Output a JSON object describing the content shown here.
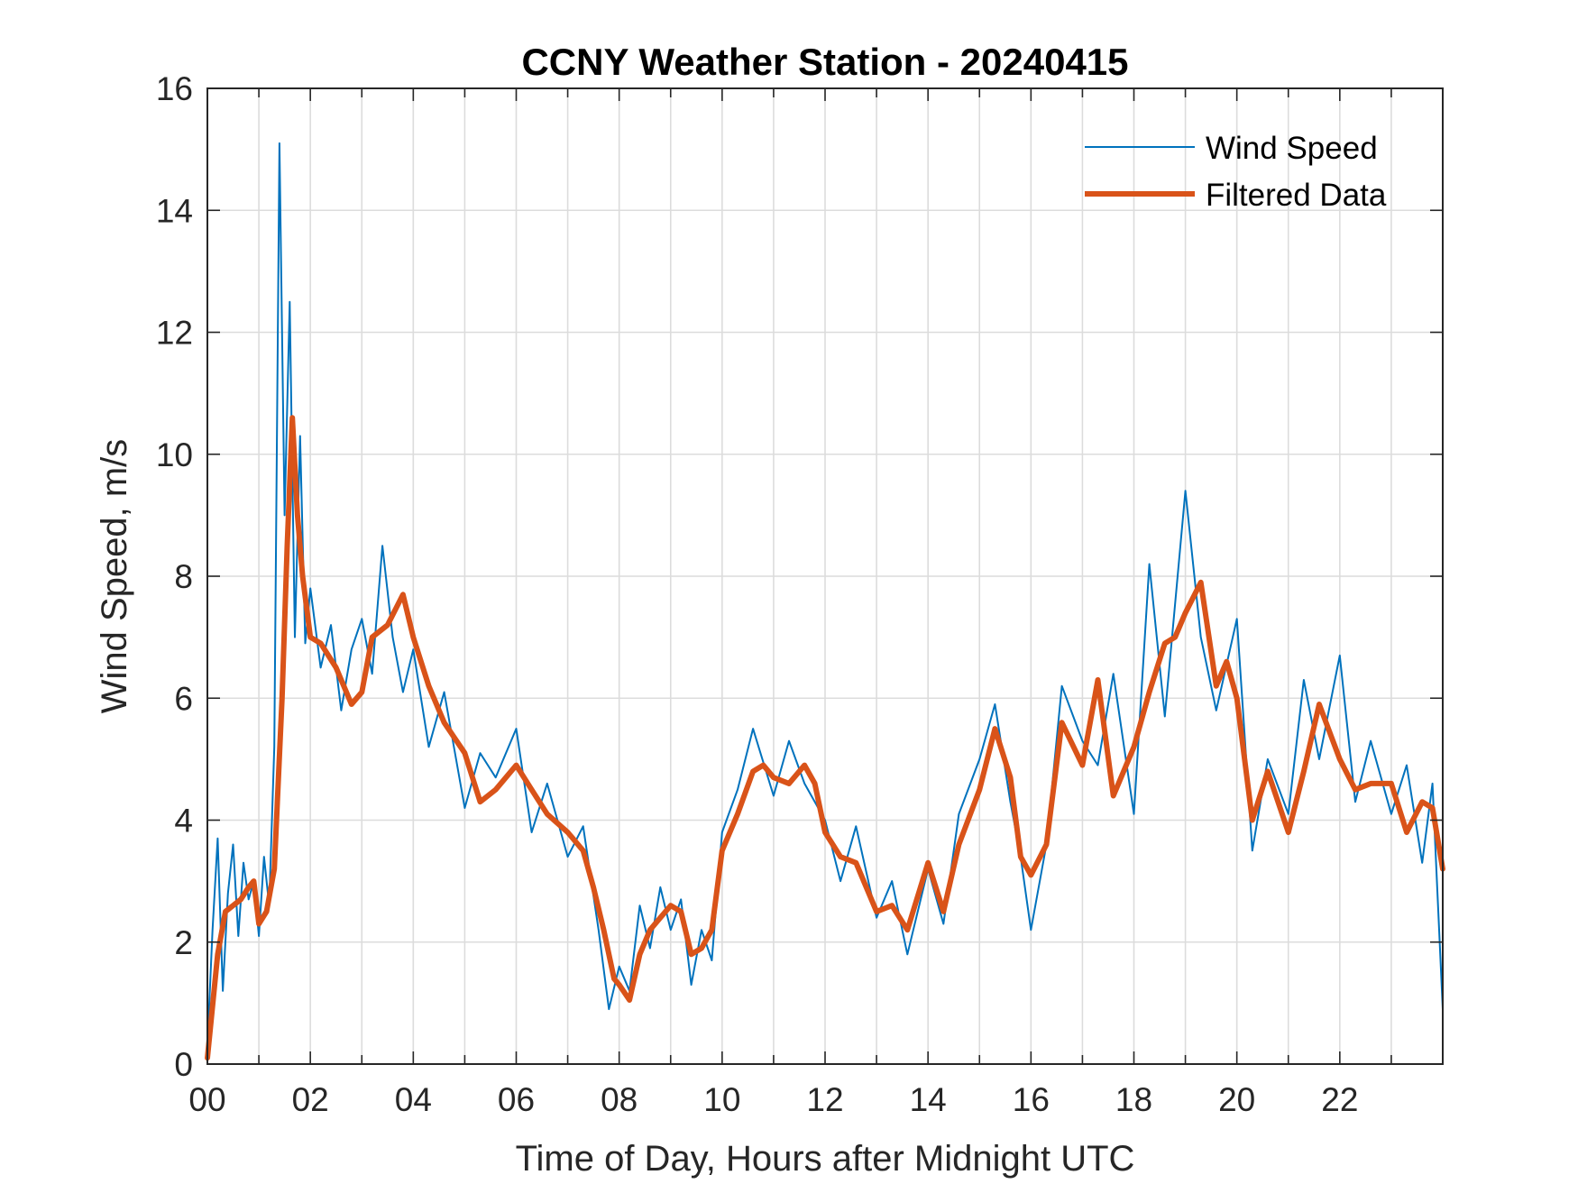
{
  "chart_data": {
    "type": "line",
    "title": "CCNY Weather Station - 20240415",
    "xlabel": "Time of Day, Hours after Midnight UTC",
    "ylabel": "Wind Speed, m/s",
    "xlim": [
      0,
      24
    ],
    "ylim": [
      0,
      16
    ],
    "xticks": [
      0,
      2,
      4,
      6,
      8,
      10,
      12,
      14,
      16,
      18,
      20,
      22
    ],
    "xtick_labels": [
      "00",
      "02",
      "04",
      "06",
      "08",
      "10",
      "12",
      "14",
      "16",
      "18",
      "20",
      "22"
    ],
    "yticks": [
      0,
      2,
      4,
      6,
      8,
      10,
      12,
      14,
      16
    ],
    "ytick_labels": [
      "0",
      "2",
      "4",
      "6",
      "8",
      "10",
      "12",
      "14",
      "16"
    ],
    "grid": true,
    "minor_x_grid_step": 1,
    "legend_position": "top-right",
    "colors": {
      "raw": "#0072BD",
      "filtered": "#D95319",
      "grid": "#dcdcdc",
      "axis": "#262626"
    },
    "series": [
      {
        "name": "Wind Speed",
        "style": "thin",
        "x": [
          0.0,
          0.1,
          0.2,
          0.3,
          0.4,
          0.5,
          0.6,
          0.7,
          0.8,
          0.9,
          1.0,
          1.1,
          1.2,
          1.3,
          1.4,
          1.5,
          1.6,
          1.7,
          1.8,
          1.9,
          2.0,
          2.2,
          2.4,
          2.6,
          2.8,
          3.0,
          3.2,
          3.4,
          3.6,
          3.8,
          4.0,
          4.3,
          4.6,
          5.0,
          5.3,
          5.6,
          6.0,
          6.3,
          6.6,
          7.0,
          7.3,
          7.6,
          7.8,
          8.0,
          8.2,
          8.4,
          8.6,
          8.8,
          9.0,
          9.2,
          9.4,
          9.6,
          9.8,
          10.0,
          10.3,
          10.6,
          11.0,
          11.3,
          11.6,
          12.0,
          12.3,
          12.6,
          13.0,
          13.3,
          13.6,
          14.0,
          14.3,
          14.6,
          15.0,
          15.3,
          15.6,
          15.8,
          16.0,
          16.3,
          16.6,
          17.0,
          17.3,
          17.6,
          18.0,
          18.3,
          18.6,
          19.0,
          19.3,
          19.6,
          20.0,
          20.3,
          20.6,
          21.0,
          21.3,
          21.6,
          22.0,
          22.3,
          22.6,
          23.0,
          23.3,
          23.6,
          23.8,
          24.0
        ],
        "values": [
          0.3,
          2.2,
          3.7,
          1.2,
          2.8,
          3.6,
          2.1,
          3.3,
          2.7,
          3.0,
          2.1,
          3.4,
          2.6,
          5.2,
          15.1,
          9.0,
          12.5,
          7.0,
          10.3,
          6.9,
          7.8,
          6.5,
          7.2,
          5.8,
          6.8,
          7.3,
          6.4,
          8.5,
          7.0,
          6.1,
          6.8,
          5.2,
          6.1,
          4.2,
          5.1,
          4.7,
          5.5,
          3.8,
          4.6,
          3.4,
          3.9,
          2.2,
          0.9,
          1.6,
          1.2,
          2.6,
          1.9,
          2.9,
          2.2,
          2.7,
          1.3,
          2.2,
          1.7,
          3.8,
          4.5,
          5.5,
          4.4,
          5.3,
          4.6,
          4.0,
          3.0,
          3.9,
          2.4,
          3.0,
          1.8,
          3.2,
          2.3,
          4.1,
          5.0,
          5.9,
          4.3,
          3.4,
          2.2,
          3.6,
          6.2,
          5.3,
          4.9,
          6.4,
          4.1,
          8.2,
          5.7,
          9.4,
          7.0,
          5.8,
          7.3,
          3.5,
          5.0,
          4.1,
          6.3,
          5.0,
          6.7,
          4.3,
          5.3,
          4.1,
          4.9,
          3.3,
          4.6,
          0.9
        ]
      },
      {
        "name": "Filtered Data",
        "style": "thick",
        "x": [
          0.0,
          0.2,
          0.35,
          0.5,
          0.65,
          0.8,
          0.9,
          1.0,
          1.15,
          1.3,
          1.45,
          1.55,
          1.65,
          1.75,
          1.85,
          2.0,
          2.2,
          2.5,
          2.8,
          3.0,
          3.2,
          3.5,
          3.8,
          4.0,
          4.3,
          4.6,
          5.0,
          5.3,
          5.6,
          6.0,
          6.3,
          6.6,
          7.0,
          7.3,
          7.5,
          7.7,
          7.9,
          8.0,
          8.2,
          8.4,
          8.6,
          8.8,
          9.0,
          9.2,
          9.4,
          9.6,
          9.8,
          10.0,
          10.3,
          10.6,
          10.8,
          11.0,
          11.3,
          11.6,
          11.8,
          12.0,
          12.3,
          12.6,
          13.0,
          13.3,
          13.6,
          14.0,
          14.3,
          14.6,
          15.0,
          15.3,
          15.6,
          15.8,
          16.0,
          16.3,
          16.6,
          17.0,
          17.3,
          17.6,
          18.0,
          18.3,
          18.6,
          18.8,
          19.0,
          19.3,
          19.6,
          19.8,
          20.0,
          20.3,
          20.6,
          21.0,
          21.3,
          21.6,
          22.0,
          22.3,
          22.6,
          23.0,
          23.3,
          23.6,
          23.8,
          24.0
        ],
        "values": [
          0.1,
          1.8,
          2.5,
          2.6,
          2.7,
          2.9,
          3.0,
          2.3,
          2.5,
          3.2,
          6.0,
          8.5,
          10.6,
          9.0,
          8.0,
          7.0,
          6.9,
          6.5,
          5.9,
          6.1,
          7.0,
          7.2,
          7.7,
          7.0,
          6.2,
          5.6,
          5.1,
          4.3,
          4.5,
          4.9,
          4.5,
          4.1,
          3.8,
          3.5,
          2.9,
          2.2,
          1.4,
          1.3,
          1.05,
          1.8,
          2.2,
          2.4,
          2.6,
          2.5,
          1.8,
          1.9,
          2.2,
          3.5,
          4.1,
          4.8,
          4.9,
          4.7,
          4.6,
          4.9,
          4.6,
          3.8,
          3.4,
          3.3,
          2.5,
          2.6,
          2.2,
          3.3,
          2.5,
          3.6,
          4.5,
          5.5,
          4.7,
          3.4,
          3.1,
          3.6,
          5.6,
          4.9,
          6.3,
          4.4,
          5.2,
          6.1,
          6.9,
          7.0,
          7.4,
          7.9,
          6.2,
          6.6,
          6.0,
          4.0,
          4.8,
          3.8,
          4.8,
          5.9,
          5.0,
          4.5,
          4.6,
          4.6,
          3.8,
          4.3,
          4.2,
          3.2
        ]
      }
    ]
  }
}
